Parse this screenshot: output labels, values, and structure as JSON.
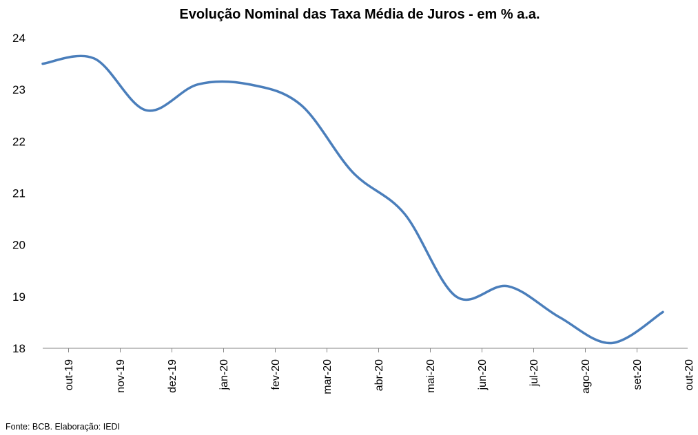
{
  "chart_data": {
    "type": "line",
    "title": "Evolução Nominal das Taxa Média de Juros  - em % a.a.",
    "xlabel": "",
    "ylabel": "",
    "categories": [
      "out-19",
      "nov-19",
      "dez-19",
      "jan-20",
      "fev-20",
      "mar-20",
      "abr-20",
      "mai-20",
      "jun-20",
      "jul-20",
      "ago-20",
      "set-20",
      "out-20"
    ],
    "series": [
      {
        "values": [
          23.5,
          23.6,
          22.6,
          23.1,
          23.1,
          22.7,
          21.4,
          20.6,
          19.0,
          19.2,
          18.6,
          18.1,
          18.7
        ]
      }
    ],
    "y_ticks": [
      "18",
      "19",
      "20",
      "21",
      "22",
      "23",
      "24"
    ],
    "ylim": [
      18,
      24
    ],
    "grid": false,
    "line_color": "#4A7EBB"
  },
  "footer": {
    "source": "Fonte: BCB. Elaboração: IEDI"
  }
}
